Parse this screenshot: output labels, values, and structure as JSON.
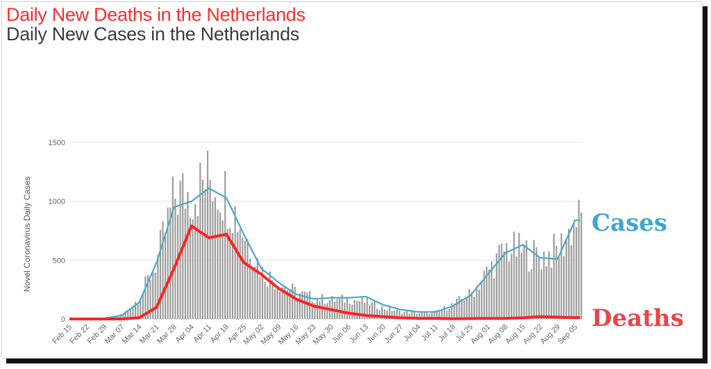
{
  "titles": {
    "deaths_title": "Daily New Deaths in the Netherlands",
    "cases_title": "Daily New Cases in the Netherlands"
  },
  "annotations": {
    "cases_label": "Cases",
    "deaths_label": "Deaths"
  },
  "colors": {
    "bars": "#9a9a9a",
    "cases_line": "#49a8c9",
    "deaths_line": "#ff2222",
    "deaths_title": "#ff2b2b",
    "cases_label": "#3fa6cf",
    "deaths_label": "#e8454a"
  },
  "chart_data": {
    "type": "bar",
    "title": "Daily New Cases in the Netherlands",
    "ylabel": "Novel Coronavirus Daily Cases",
    "xlabel": "",
    "ylim": [
      0,
      1500
    ],
    "yticks": [
      0,
      500,
      1000,
      1500
    ],
    "grid": true,
    "x_tick_labels": [
      "Feb 15",
      "Feb 22",
      "Feb 29",
      "Mar 07",
      "Mar 14",
      "Mar 21",
      "Mar 28",
      "Apr 04",
      "Apr 11",
      "Apr 18",
      "Apr 25",
      "May 02",
      "May 09",
      "May 16",
      "May 23",
      "May 30",
      "Jun 06",
      "Jun 13",
      "Jun 20",
      "Jun 27",
      "Jul 04",
      "Jul 11",
      "Jul 18",
      "Jul 25",
      "Aug 01",
      "Aug 08",
      "Aug 15",
      "Aug 22",
      "Aug 29",
      "Sep 05"
    ],
    "x_start": "Feb 15",
    "series": [
      {
        "name": "Daily New Cases",
        "style": "bars",
        "weekly_values": [
          0,
          0,
          5,
          40,
          190,
          520,
          1050,
          1080,
          1200,
          1050,
          720,
          400,
          300,
          220,
          180,
          160,
          170,
          140,
          90,
          60,
          50,
          60,
          130,
          220,
          420,
          600,
          570,
          530,
          590,
          840
        ]
      },
      {
        "name": "Cases",
        "style": "line",
        "weekly_values": [
          0,
          0,
          5,
          30,
          140,
          480,
          950,
          1000,
          1110,
          1030,
          720,
          430,
          310,
          210,
          170,
          180,
          180,
          190,
          120,
          80,
          60,
          60,
          110,
          200,
          380,
          560,
          630,
          520,
          510,
          840
        ]
      },
      {
        "name": "Deaths",
        "style": "line",
        "weekly_values": [
          0,
          0,
          0,
          0,
          10,
          100,
          430,
          790,
          690,
          720,
          480,
          380,
          260,
          170,
          110,
          80,
          50,
          30,
          20,
          10,
          5,
          5,
          2,
          3,
          5,
          5,
          10,
          20,
          15,
          12
        ]
      }
    ]
  }
}
